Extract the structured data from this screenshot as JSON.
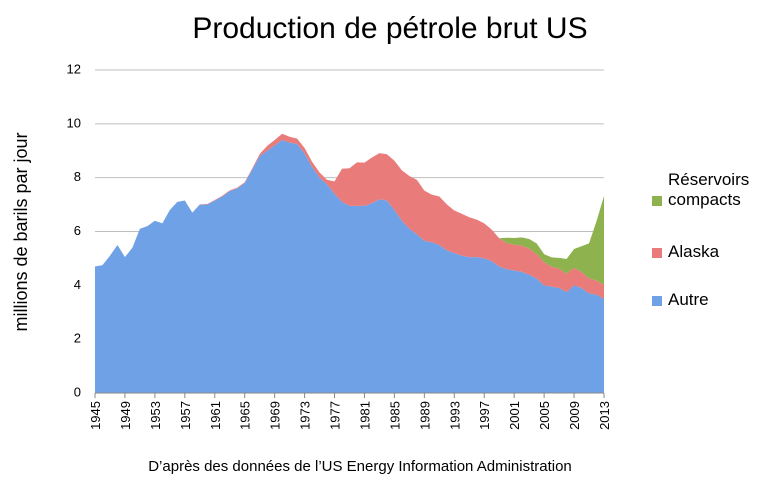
{
  "chart_data": {
    "type": "stacked_area",
    "title": "Production de pétrole brut US",
    "y_label": "millions de barils par jour",
    "source": "D’après des données de l’US Energy Information Administration",
    "x": [
      1945,
      1946,
      1947,
      1948,
      1949,
      1950,
      1951,
      1952,
      1953,
      1954,
      1955,
      1956,
      1957,
      1958,
      1959,
      1960,
      1961,
      1962,
      1963,
      1964,
      1965,
      1966,
      1967,
      1968,
      1969,
      1970,
      1971,
      1972,
      1973,
      1974,
      1975,
      1976,
      1977,
      1978,
      1979,
      1980,
      1981,
      1982,
      1983,
      1984,
      1985,
      1986,
      1987,
      1988,
      1989,
      1990,
      1991,
      1992,
      1993,
      1994,
      1995,
      1996,
      1997,
      1998,
      1999,
      2000,
      2001,
      2002,
      2003,
      2004,
      2005,
      2006,
      2007,
      2008,
      2009,
      2010,
      2011,
      2012,
      2013
    ],
    "series": [
      {
        "name": "Autre",
        "color": "#6fa1e6",
        "values": [
          4.7,
          4.75,
          5.1,
          5.5,
          5.05,
          5.4,
          6.1,
          6.2,
          6.4,
          6.3,
          6.8,
          7.1,
          7.15,
          6.7,
          7.0,
          7.0,
          7.15,
          7.3,
          7.5,
          7.6,
          7.8,
          8.3,
          8.8,
          9.0,
          9.2,
          9.4,
          9.3,
          9.25,
          8.9,
          8.4,
          8.0,
          7.75,
          7.4,
          7.1,
          6.95,
          6.95,
          6.95,
          7.05,
          7.2,
          7.15,
          6.8,
          6.4,
          6.1,
          5.9,
          5.65,
          5.6,
          5.5,
          5.3,
          5.2,
          5.1,
          5.05,
          5.05,
          5.0,
          4.9,
          4.7,
          4.6,
          4.55,
          4.5,
          4.4,
          4.25,
          4.0,
          3.95,
          3.9,
          3.75,
          4.0,
          3.9,
          3.7,
          3.65,
          3.5
        ]
      },
      {
        "name": "Alaska",
        "color": "#e97b7b",
        "values": [
          0,
          0,
          0,
          0,
          0,
          0,
          0,
          0,
          0,
          0,
          0,
          0,
          0,
          0,
          0.01,
          0.02,
          0.02,
          0.03,
          0.03,
          0.03,
          0.03,
          0.04,
          0.08,
          0.18,
          0.2,
          0.23,
          0.22,
          0.2,
          0.2,
          0.19,
          0.19,
          0.17,
          0.46,
          1.23,
          1.4,
          1.62,
          1.61,
          1.7,
          1.71,
          1.72,
          1.83,
          1.87,
          1.96,
          2.02,
          1.87,
          1.77,
          1.8,
          1.71,
          1.58,
          1.56,
          1.48,
          1.39,
          1.3,
          1.17,
          1.05,
          0.97,
          0.96,
          0.98,
          0.97,
          0.91,
          0.86,
          0.74,
          0.72,
          0.68,
          0.65,
          0.6,
          0.56,
          0.53,
          0.52
        ]
      },
      {
        "name": "Réservoirs compacts",
        "color": "#8db24e",
        "values": [
          0,
          0,
          0,
          0,
          0,
          0,
          0,
          0,
          0,
          0,
          0,
          0,
          0,
          0,
          0,
          0,
          0,
          0,
          0,
          0,
          0,
          0,
          0,
          0,
          0,
          0,
          0,
          0,
          0,
          0,
          0,
          0,
          0,
          0,
          0,
          0,
          0,
          0,
          0,
          0,
          0,
          0,
          0,
          0,
          0,
          0,
          0,
          0,
          0,
          0,
          0,
          0,
          0,
          0,
          0,
          0.2,
          0.25,
          0.3,
          0.35,
          0.4,
          0.3,
          0.35,
          0.4,
          0.55,
          0.7,
          0.95,
          1.3,
          2.2,
          3.3
        ]
      }
    ],
    "xlim": [
      1945,
      2013
    ],
    "xticks": [
      1945,
      1949,
      1953,
      1957,
      1961,
      1965,
      1969,
      1973,
      1977,
      1981,
      1985,
      1989,
      1993,
      1997,
      2001,
      2005,
      2009,
      2013
    ],
    "ylim": [
      0,
      12
    ],
    "yticks": [
      0,
      2,
      4,
      6,
      8,
      10,
      12
    ],
    "grid": true
  }
}
